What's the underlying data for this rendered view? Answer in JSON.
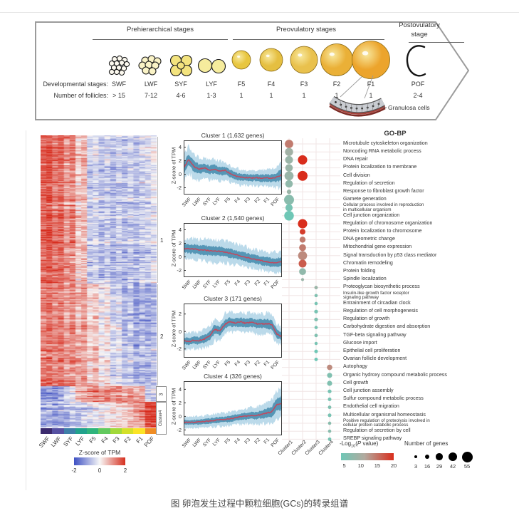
{
  "caption": "图 卵泡发生过程中颗粒细胞(GCs)的转录组谱",
  "schematic": {
    "groups": [
      {
        "label": "Prehierarchical stages"
      },
      {
        "label": "Preovulatory stages"
      },
      {
        "line1": "Postovulatory",
        "line2": "stage"
      }
    ],
    "row_labels": {
      "stages": "Developmental stages:",
      "counts": "Number of follicles:"
    },
    "granulosa_label": "Granulosa cells",
    "stages": [
      {
        "label": "SWF",
        "count": "> 15",
        "kind": "cluster",
        "fill": "#fdfaf0",
        "bar": "#3b2a6d"
      },
      {
        "label": "LWF",
        "count": "7-12",
        "kind": "cluster",
        "fill": "#faf3c6",
        "bar": "#5651a2"
      },
      {
        "label": "SYF",
        "count": "4-6",
        "kind": "cluster",
        "fill": "#f3e37e",
        "bar": "#3f7fa8"
      },
      {
        "label": "LYF",
        "count": "1-3",
        "kind": "cluster",
        "fill": "#f6ec9d",
        "bar": "#21a28c"
      },
      {
        "label": "F5",
        "count": "1",
        "kind": "single",
        "fill": "#e8c640",
        "bar": "#2fb47c"
      },
      {
        "label": "F4",
        "count": "1",
        "kind": "single",
        "fill": "#e5bf41",
        "bar": "#62c95e"
      },
      {
        "label": "F3",
        "count": "1",
        "kind": "single",
        "fill": "#e9c14d",
        "bar": "#a2d93a"
      },
      {
        "label": "F2",
        "count": "1",
        "kind": "single",
        "fill": "#eab037",
        "bar": "#d4e029"
      },
      {
        "label": "F1",
        "count": "1",
        "kind": "single",
        "fill": "#eca42c",
        "bar": "#fbe426"
      },
      {
        "label": "POF",
        "count": "2-4",
        "kind": "pof",
        "fill": "#ffffff",
        "bar": "#f08d24"
      }
    ]
  },
  "heatmap": {
    "side_labels": [
      "1",
      "2",
      "3",
      "Cluster4"
    ],
    "cluster_means": [
      [
        1.7,
        1.45,
        1.15,
        0.55,
        -0.45,
        -0.6,
        -0.65,
        -0.65,
        -0.6,
        -0.25
      ],
      [
        1.35,
        1.25,
        1.05,
        0.8,
        0.45,
        0.05,
        -0.35,
        -0.7,
        -0.95,
        -0.85
      ],
      [
        -1.3,
        -1.25,
        -0.5,
        0.8,
        1.1,
        1.05,
        1.0,
        0.95,
        0.85,
        -0.5
      ],
      [
        -0.95,
        -0.9,
        -0.75,
        -0.5,
        -0.25,
        0.0,
        0.3,
        0.55,
        0.95,
        2.0
      ]
    ],
    "zmin": -2,
    "zmax": 2,
    "colors": {
      "low": "#3d50c3",
      "mid": "#f7f7f7",
      "high": "#d6301f"
    },
    "legend": {
      "title": "Z-score of TPM",
      "ticks": [
        "-2",
        "0",
        "2"
      ]
    }
  },
  "cluster_panels": {
    "ylabel": "Z-score of TPM",
    "colors": {
      "band_light": "#84bcd8",
      "band": "#4a8fb0",
      "line": "#c04a60"
    },
    "panels": [
      {
        "title": "Cluster 1 (1,632 genes)",
        "ticks": [
          4,
          2,
          0,
          -2
        ],
        "vmax": 5,
        "vmin": -3,
        "mean": [
          0.9,
          2.2,
          1.1,
          0.75,
          0.95,
          0.6,
          0.75,
          0.45,
          0.55,
          0.1,
          -0.25,
          -0.45,
          -0.5,
          -0.55,
          -0.5,
          -0.6,
          -0.55,
          -0.6,
          -0.45,
          -0.1
        ],
        "band": [
          1.9,
          2.1,
          1.9,
          1.7,
          1.6,
          1.5,
          1.5,
          1.45,
          1.4,
          1.3,
          1.25,
          1.2,
          1.2,
          1.2,
          1.2,
          1.25,
          1.3,
          1.3,
          1.6,
          2.1
        ]
      },
      {
        "title": "Cluster 2 (1,540 genes)",
        "ticks": [
          4,
          2,
          0,
          -2
        ],
        "vmax": 5,
        "vmin": -3,
        "mean": [
          1.25,
          1.2,
          1.15,
          1.05,
          1.0,
          0.9,
          0.85,
          0.8,
          0.7,
          0.55,
          0.35,
          0.15,
          -0.05,
          -0.25,
          -0.4,
          -0.55,
          -0.7,
          -0.85,
          -0.85,
          -0.65
        ],
        "band": [
          1.5,
          1.55,
          1.6,
          1.6,
          1.65,
          1.7,
          1.7,
          1.7,
          1.7,
          1.65,
          1.6,
          1.6,
          1.55,
          1.5,
          1.5,
          1.5,
          1.5,
          1.55,
          1.6,
          1.7
        ]
      },
      {
        "title": "Cluster 3 (171 genes)",
        "ticks": [
          2,
          0,
          -2
        ],
        "vmax": 3.2,
        "vmin": -3,
        "mean": [
          -1.05,
          -1.15,
          -1.0,
          -1.05,
          -0.85,
          -0.55,
          0.25,
          0.05,
          0.85,
          1.1,
          1.0,
          1.1,
          0.95,
          1.05,
          0.9,
          0.85,
          0.9,
          0.8,
          -0.25,
          -0.6
        ],
        "band": [
          0.9,
          1.0,
          0.95,
          1.0,
          1.1,
          1.2,
          1.3,
          1.25,
          1.25,
          1.2,
          1.15,
          1.2,
          1.15,
          1.15,
          1.2,
          1.2,
          1.25,
          1.25,
          1.15,
          1.05
        ]
      },
      {
        "title": "Cluster 4 (326 genes)",
        "ticks": [
          4,
          2,
          0,
          -2
        ],
        "vmax": 5.2,
        "vmin": -2.8,
        "mean": [
          -0.85,
          -0.9,
          -0.85,
          -0.8,
          -0.75,
          -0.7,
          -0.6,
          -0.5,
          -0.45,
          -0.35,
          -0.2,
          -0.05,
          0.05,
          0.15,
          0.1,
          0.3,
          0.5,
          0.65,
          1.7,
          2.0
        ],
        "band": [
          0.8,
          0.85,
          0.85,
          0.9,
          0.9,
          0.95,
          1.0,
          1.0,
          1.05,
          1.1,
          1.1,
          1.15,
          1.2,
          1.3,
          1.3,
          1.4,
          1.6,
          1.8,
          2.2,
          2.4
        ]
      }
    ]
  },
  "dotplot": {
    "title": "GO-BP",
    "cluster_labels": [
      "Cluster1",
      "Cluster2",
      "Cluster3",
      "Cluster4"
    ],
    "color_scale": {
      "teal": "#6fc7b6",
      "gray": "#b3aa9f",
      "red": "#d92d1c",
      "pmin": 4,
      "pmax": 20
    },
    "legend_p": {
      "prefix": "-Log",
      "sub": "10",
      "open": "(",
      "pvar": "P",
      "close": " value)",
      "ticks": [
        5,
        10,
        15,
        20
      ]
    },
    "legend_n": {
      "title": "Number of genes",
      "sizes": [
        3,
        16,
        29,
        42,
        55
      ]
    },
    "terms": [
      {
        "lines": [
          "Microtubule cytoskeleton organization"
        ],
        "dots": [
          {
            "cluster": 1,
            "logp": 15,
            "genes": 40
          }
        ]
      },
      {
        "lines": [
          "Noncoding RNA metabolic process"
        ],
        "dots": [
          {
            "cluster": 1,
            "logp": 10,
            "genes": 38
          }
        ]
      },
      {
        "lines": [
          "DNA repair"
        ],
        "dots": [
          {
            "cluster": 1,
            "logp": 9,
            "genes": 36
          },
          {
            "cluster": 2,
            "logp": 20,
            "genes": 46
          }
        ]
      },
      {
        "lines": [
          "Protein localization to membrane"
        ],
        "dots": [
          {
            "cluster": 1,
            "logp": 9,
            "genes": 34
          }
        ]
      },
      {
        "lines": [
          "Cell division"
        ],
        "dots": [
          {
            "cluster": 1,
            "logp": 9,
            "genes": 44
          },
          {
            "cluster": 2,
            "logp": 20,
            "genes": 50
          }
        ]
      },
      {
        "lines": [
          "Regulation of secretion"
        ],
        "dots": [
          {
            "cluster": 1,
            "logp": 8,
            "genes": 34
          }
        ]
      },
      {
        "lines": [
          "Response to fibroblast growth factor"
        ],
        "dots": [
          {
            "cluster": 1,
            "logp": 9,
            "genes": 14
          }
        ]
      },
      {
        "lines": [
          "Gamete generation"
        ],
        "dots": [
          {
            "cluster": 1,
            "logp": 7,
            "genes": 50
          }
        ]
      },
      {
        "lines": [
          "Cellular process involved in reproduction",
          "in multicellular organism"
        ],
        "dots": [
          {
            "cluster": 1,
            "logp": 5,
            "genes": 32
          }
        ]
      },
      {
        "lines": [
          "Cell junction organization"
        ],
        "dots": [
          {
            "cluster": 1,
            "logp": 4,
            "genes": 48
          }
        ]
      },
      {
        "lines": [
          "Regulation of chromosome organization"
        ],
        "dots": [
          {
            "cluster": 2,
            "logp": 20,
            "genes": 46
          }
        ]
      },
      {
        "lines": [
          "Protein localization to chromosome"
        ],
        "dots": [
          {
            "cluster": 2,
            "logp": 19,
            "genes": 22
          }
        ]
      },
      {
        "lines": [
          "DNA geometric change"
        ],
        "dots": [
          {
            "cluster": 2,
            "logp": 15,
            "genes": 24
          }
        ]
      },
      {
        "lines": [
          "Mitochondrial gene expression"
        ],
        "dots": [
          {
            "cluster": 2,
            "logp": 15,
            "genes": 30
          }
        ]
      },
      {
        "lines": [
          "Signal transduction by p53 class mediator"
        ],
        "dots": [
          {
            "cluster": 2,
            "logp": 14,
            "genes": 44
          }
        ]
      },
      {
        "lines": [
          "Chromatin remodeling"
        ],
        "dots": [
          {
            "cluster": 2,
            "logp": 17,
            "genes": 36
          }
        ]
      },
      {
        "lines": [
          "Protein folding"
        ],
        "dots": [
          {
            "cluster": 2,
            "logp": 8,
            "genes": 30
          }
        ]
      },
      {
        "lines": [
          "Spindle localization"
        ],
        "dots": [
          {
            "cluster": 2,
            "logp": 9,
            "genes": 4
          }
        ]
      },
      {
        "lines": [
          "Proteoglycan biosynthetic process"
        ],
        "dots": [
          {
            "cluster": 3,
            "logp": 9,
            "genes": 7
          }
        ]
      },
      {
        "lines": [
          "Insulin-like growth factor receptor",
          "signaling pathway"
        ],
        "dots": [
          {
            "cluster": 3,
            "logp": 6,
            "genes": 6
          }
        ]
      },
      {
        "lines": [
          "Entrainment of circadian clock"
        ],
        "dots": [
          {
            "cluster": 3,
            "logp": 5,
            "genes": 6
          }
        ]
      },
      {
        "lines": [
          "Regulation of cell morphogenesis"
        ],
        "dots": [
          {
            "cluster": 3,
            "logp": 5,
            "genes": 9
          }
        ]
      },
      {
        "lines": [
          "Regulation of growth"
        ],
        "dots": [
          {
            "cluster": 3,
            "logp": 6,
            "genes": 9
          }
        ]
      },
      {
        "lines": [
          "Carbohydrate digestion and absorption"
        ],
        "dots": [
          {
            "cluster": 3,
            "logp": 5,
            "genes": 6
          }
        ]
      },
      {
        "lines": [
          "TGF-beta signaling pathway"
        ],
        "dots": [
          {
            "cluster": 3,
            "logp": 6,
            "genes": 7
          }
        ]
      },
      {
        "lines": [
          "Glucose import"
        ],
        "dots": [
          {
            "cluster": 3,
            "logp": 5,
            "genes": 5
          }
        ]
      },
      {
        "lines": [
          "Epithelial cell proliferation"
        ],
        "dots": [
          {
            "cluster": 3,
            "logp": 4,
            "genes": 8
          }
        ]
      },
      {
        "lines": [
          "Ovarian follicle development"
        ],
        "dots": [
          {
            "cluster": 3,
            "logp": 4,
            "genes": 7
          }
        ]
      },
      {
        "lines": [
          "Autophagy"
        ],
        "dots": [
          {
            "cluster": 4,
            "logp": 14,
            "genes": 20
          }
        ]
      },
      {
        "lines": [
          "Organic hydroxy compound metabolic process"
        ],
        "dots": [
          {
            "cluster": 4,
            "logp": 6,
            "genes": 18
          }
        ]
      },
      {
        "lines": [
          "Cell growth"
        ],
        "dots": [
          {
            "cluster": 4,
            "logp": 6,
            "genes": 18
          }
        ]
      },
      {
        "lines": [
          "Cell junction assembly"
        ],
        "dots": [
          {
            "cluster": 4,
            "logp": 5,
            "genes": 9
          }
        ]
      },
      {
        "lines": [
          "Sulfur compound metabolic process"
        ],
        "dots": [
          {
            "cluster": 4,
            "logp": 5,
            "genes": 8
          }
        ]
      },
      {
        "lines": [
          "Endothelial cell migration"
        ],
        "dots": [
          {
            "cluster": 4,
            "logp": 6,
            "genes": 7
          }
        ]
      },
      {
        "lines": [
          "Multicellular organismal homeostasis"
        ],
        "dots": [
          {
            "cluster": 4,
            "logp": 5,
            "genes": 8
          }
        ]
      },
      {
        "lines": [
          "Positive regulation of proteolysis involved in",
          "cellular protein catabolic process"
        ],
        "dots": [
          {
            "cluster": 4,
            "logp": 7,
            "genes": 6
          }
        ]
      },
      {
        "lines": [
          "Regulation of secretion by cell"
        ],
        "dots": [
          {
            "cluster": 4,
            "logp": 7,
            "genes": 6
          }
        ]
      },
      {
        "lines": [
          "SREBP signaling pathway"
        ],
        "dots": [
          {
            "cluster": 4,
            "logp": 5,
            "genes": 7
          }
        ]
      }
    ]
  }
}
